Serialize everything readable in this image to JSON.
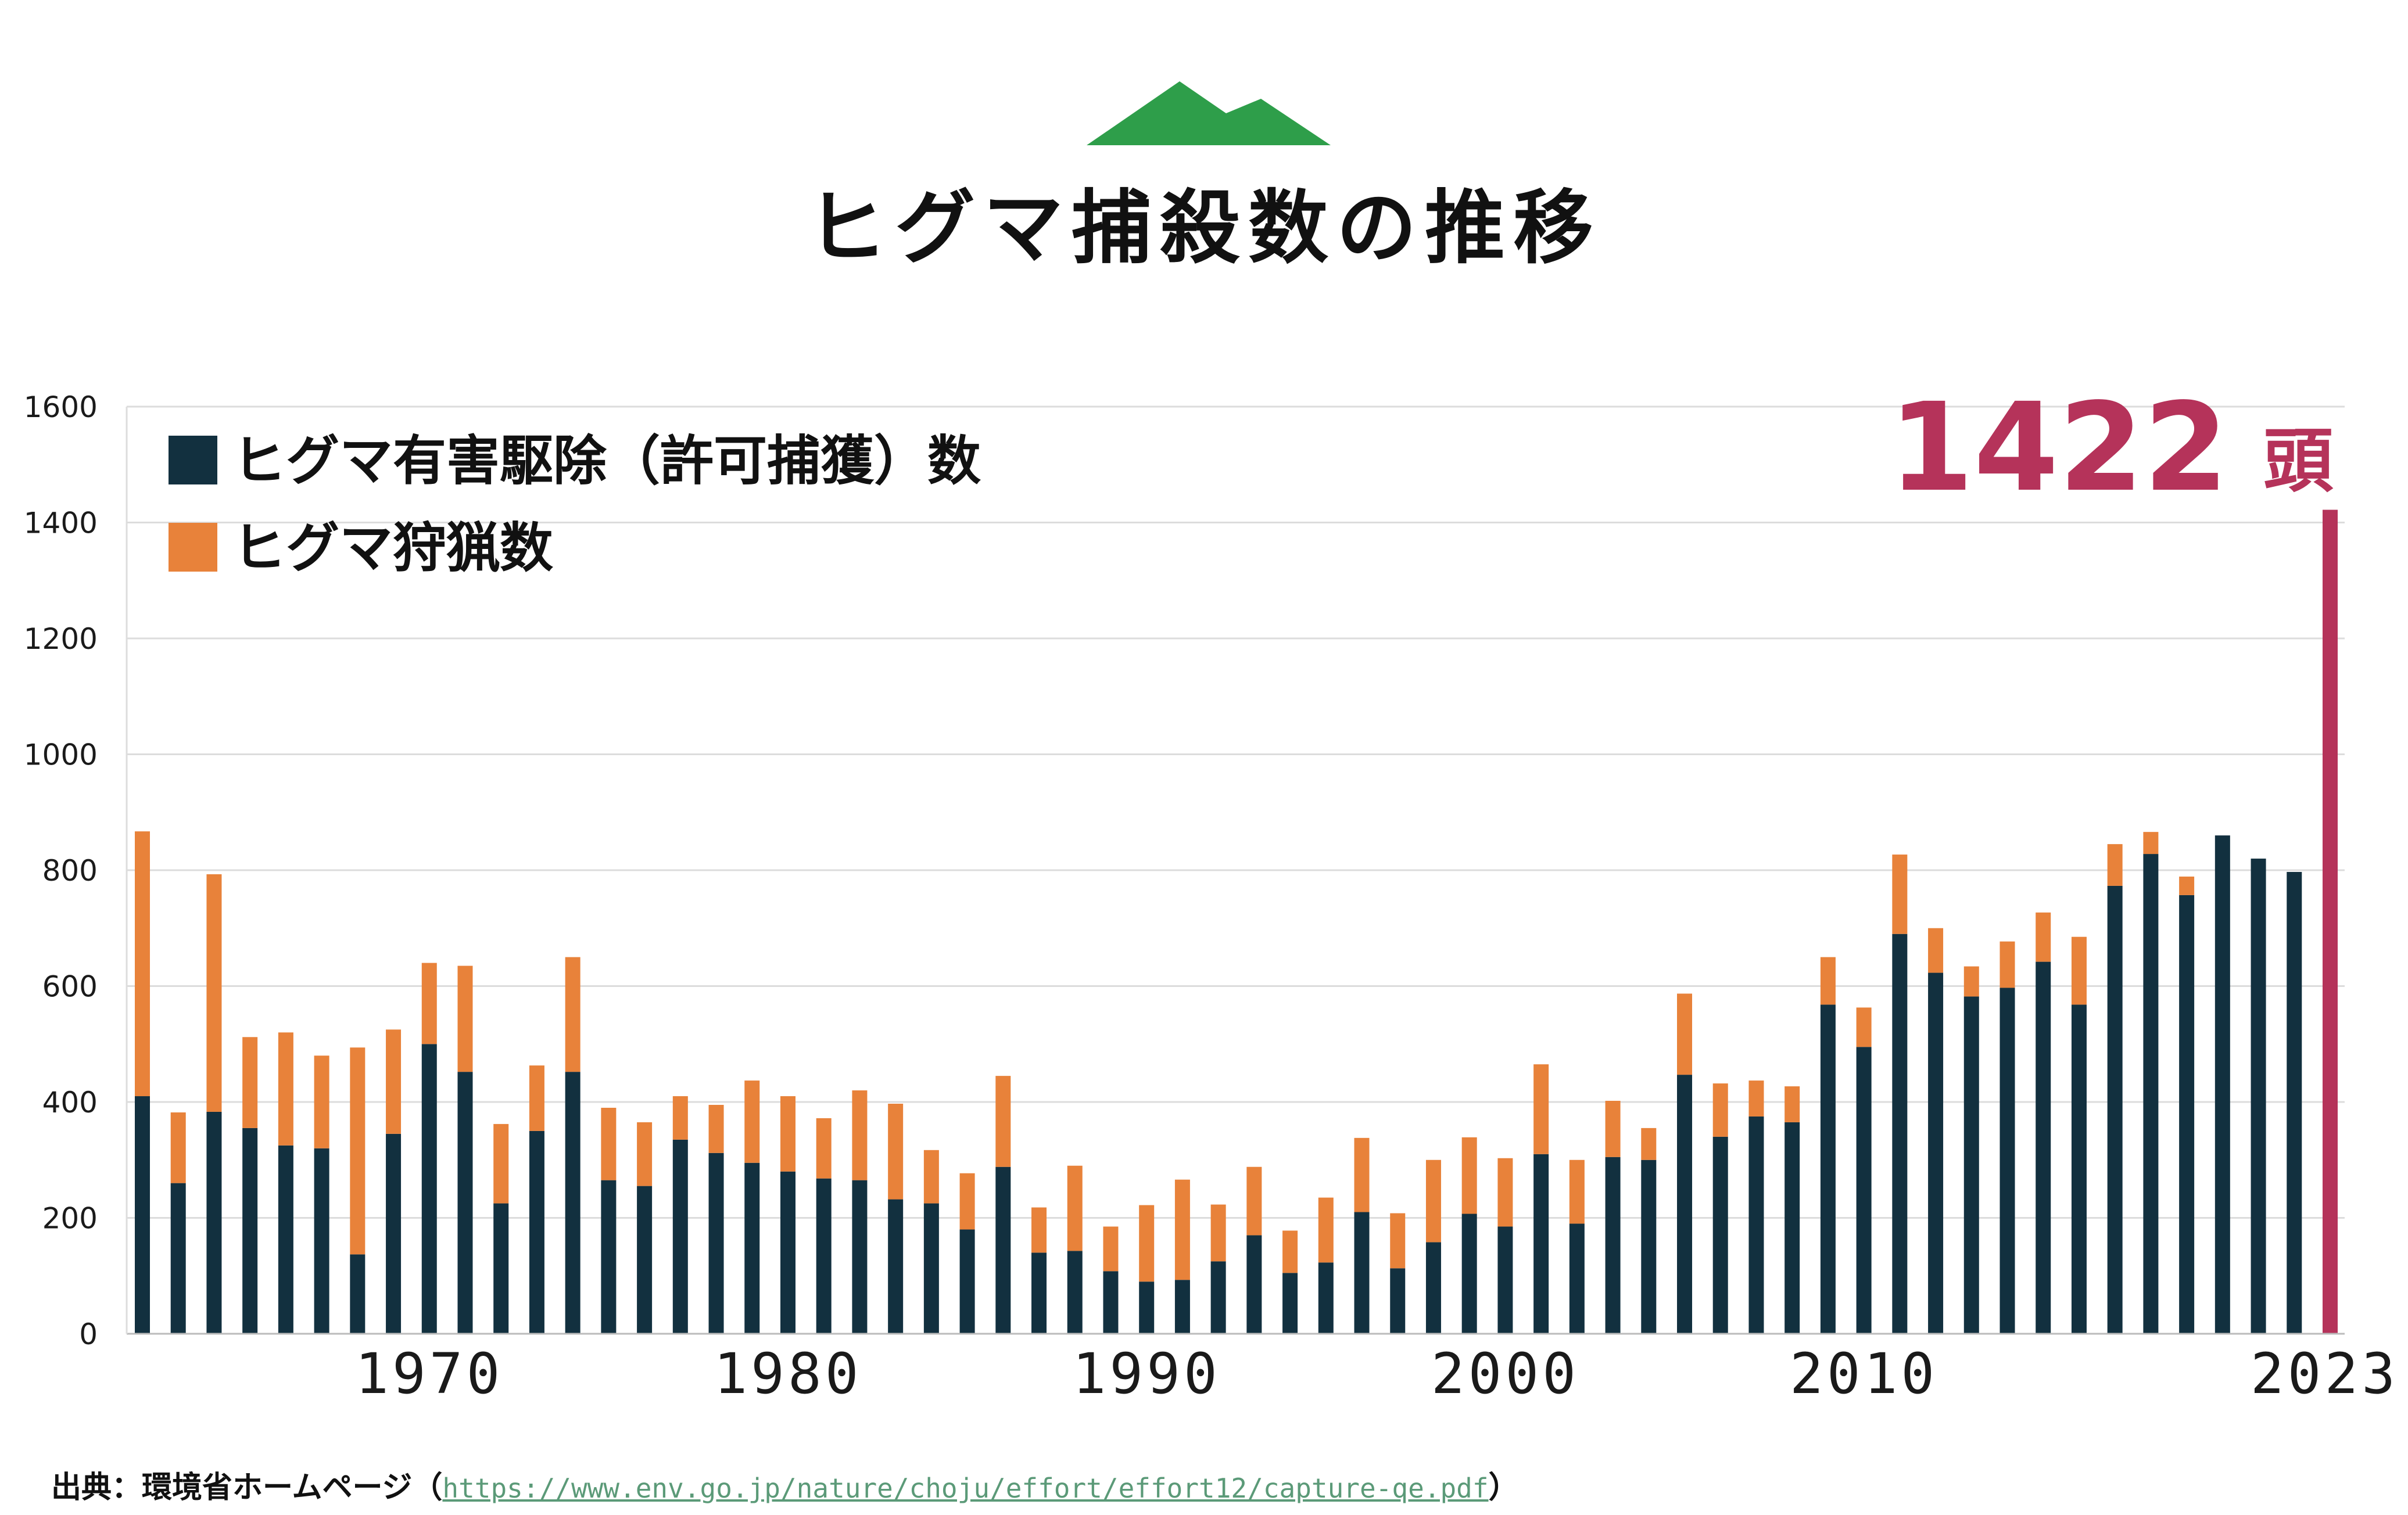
{
  "title": "ヒグマ捕殺数の推移",
  "colors": {
    "mountain": "#2e9e4a",
    "nuisance": "#12303f",
    "hunting": "#e8823a",
    "highlight": "#b5335a",
    "grid": "#dcdcdc",
    "link": "#5b9a78"
  },
  "icons": {
    "mountain": "mountain-icon"
  },
  "legend": [
    {
      "label": "ヒグマ有害駆除（許可捕獲）数",
      "color": "#12303f"
    },
    {
      "label": "ヒグマ狩猟数",
      "color": "#e8823a"
    }
  ],
  "callout": {
    "value": "1422",
    "unit": "頭"
  },
  "source": {
    "prefix": "出典：環境省ホームページ（",
    "link": "https://www.env.go.jp/nature/choju/effort/effort12/capture-qe.pdf",
    "suffix": "）"
  },
  "chart_data": {
    "type": "bar",
    "stacked": true,
    "x_tick_labels": [
      "1970",
      "1980",
      "1990",
      "2000",
      "2010",
      "2023"
    ],
    "y_ticks": [
      "0",
      "200",
      "400",
      "600",
      "800",
      "1000",
      "1200",
      "1400",
      "1600"
    ],
    "ylim": [
      0,
      1600
    ],
    "grid": true,
    "legend_position": "top-left",
    "categories": [
      1962,
      1963,
      1964,
      1965,
      1966,
      1967,
      1968,
      1969,
      1970,
      1971,
      1972,
      1973,
      1974,
      1975,
      1976,
      1977,
      1978,
      1979,
      1980,
      1981,
      1982,
      1983,
      1984,
      1985,
      1986,
      1987,
      1988,
      1989,
      1990,
      1991,
      1992,
      1993,
      1994,
      1995,
      1996,
      1997,
      1998,
      1999,
      2000,
      2001,
      2002,
      2003,
      2004,
      2005,
      2006,
      2007,
      2008,
      2009,
      2010,
      2011,
      2012,
      2013,
      2014,
      2015,
      2016,
      2017,
      2018,
      2019,
      2020,
      2021,
      2022,
      2023
    ],
    "series": [
      {
        "name": "ヒグマ有害駆除（許可捕獲）数",
        "values": [
          410,
          260,
          383,
          355,
          325,
          320,
          137,
          345,
          500,
          452,
          225,
          350,
          452,
          265,
          255,
          335,
          312,
          295,
          280,
          268,
          265,
          232,
          225,
          180,
          288,
          140,
          143,
          108,
          90,
          93,
          125,
          170,
          105,
          123,
          210,
          113,
          158,
          207,
          185,
          310,
          190,
          305,
          300,
          447,
          340,
          375,
          365,
          568,
          495,
          690,
          623,
          582,
          597,
          642,
          568,
          773,
          828,
          757,
          860,
          820,
          797,
          1422
        ]
      },
      {
        "name": "ヒグマ狩猟数",
        "values": [
          457,
          122,
          410,
          157,
          195,
          160,
          357,
          180,
          140,
          183,
          137,
          113,
          198,
          125,
          110,
          75,
          83,
          142,
          130,
          104,
          155,
          165,
          92,
          97,
          157,
          78,
          147,
          77,
          132,
          173,
          98,
          118,
          73,
          112,
          128,
          95,
          142,
          132,
          118,
          155,
          110,
          97,
          55,
          140,
          92,
          62,
          62,
          82,
          68,
          137,
          77,
          52,
          80,
          85,
          117,
          72,
          38,
          32,
          0,
          0,
          0,
          0
        ]
      }
    ]
  }
}
